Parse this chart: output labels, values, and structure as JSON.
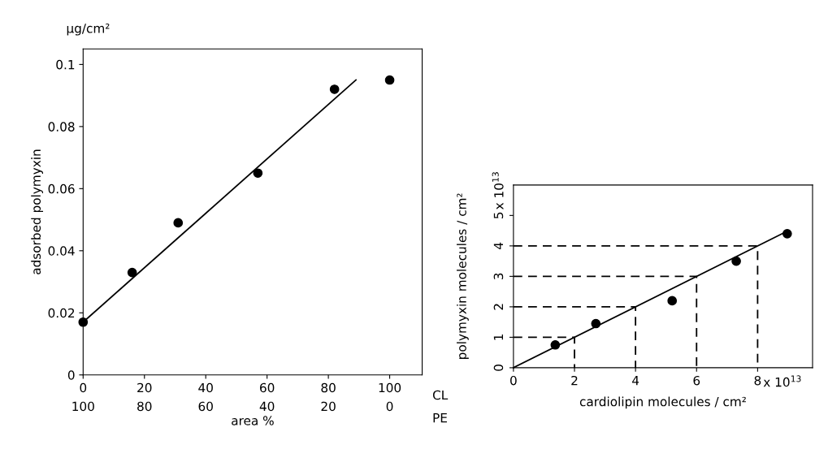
{
  "chart_data": [
    {
      "type": "scatter",
      "xlabel": "area %",
      "ylabel": "adsorbed polymyxin",
      "annotations": [
        "µg/cm²",
        "CL",
        "PE"
      ],
      "xlim": [
        0,
        110.6
      ],
      "ylim": [
        0,
        0.105
      ],
      "xticks": [
        0,
        20,
        40,
        60,
        80,
        100
      ],
      "x2lim": [
        100,
        -10.6
      ],
      "x2ticks": [
        100,
        80,
        60,
        40,
        20,
        0
      ],
      "yticks": [
        0,
        0.02,
        0.04,
        0.06,
        0.08,
        0.1
      ],
      "grid": false,
      "legend": false,
      "series": [
        {
          "type": "scatter",
          "marker": "circle",
          "color": "#000000",
          "x": [
            0,
            16,
            31,
            57,
            82,
            100
          ],
          "values": [
            0.017,
            0.033,
            0.049,
            0.065,
            0.092,
            0.095
          ]
        },
        {
          "type": "line",
          "marker": "none",
          "color": "#000000",
          "line_style": "solid",
          "x": [
            0,
            89
          ],
          "values": [
            0.017,
            0.095
          ]
        }
      ]
    },
    {
      "type": "scatter",
      "xlabel": "cardiolipin molecules / cm²",
      "ylabel": "polymyxin molecules / cm²",
      "annotations": [
        "x 10$^{13}$",
        "x 10$^{13}$"
      ],
      "xlim": [
        0,
        9.8
      ],
      "ylim": [
        0,
        6
      ],
      "xticks": [
        0,
        2,
        4,
        6,
        8
      ],
      "yticks": [
        0,
        1,
        2,
        3,
        4,
        5
      ],
      "grid": false,
      "legend": false,
      "series": [
        {
          "type": "scatter",
          "marker": "circle",
          "color": "#000000",
          "x": [
            1.37,
            2.7,
            5.2,
            7.3,
            8.97
          ],
          "values": [
            0.75,
            1.45,
            2.2,
            3.5,
            4.4
          ]
        },
        {
          "type": "line",
          "marker": "none",
          "color": "#000000",
          "line_style": "solid",
          "x": [
            0,
            9
          ],
          "values": [
            0,
            4.5
          ]
        },
        {
          "type": "line",
          "marker": "none",
          "color": "#000000",
          "line_style": "dashed",
          "x": [
            0,
            2,
            2
          ],
          "values": [
            1,
            1,
            0
          ]
        },
        {
          "type": "line",
          "marker": "none",
          "color": "#000000",
          "line_style": "dashed",
          "x": [
            0,
            4,
            4
          ],
          "values": [
            2,
            2,
            0
          ]
        },
        {
          "type": "line",
          "marker": "none",
          "color": "#000000",
          "line_style": "dashed",
          "x": [
            0,
            6,
            6
          ],
          "values": [
            3,
            3,
            0
          ]
        },
        {
          "type": "line",
          "marker": "none",
          "color": "#000000",
          "line_style": "dashed",
          "x": [
            0,
            8,
            8
          ],
          "values": [
            4,
            4,
            0
          ]
        }
      ]
    }
  ]
}
